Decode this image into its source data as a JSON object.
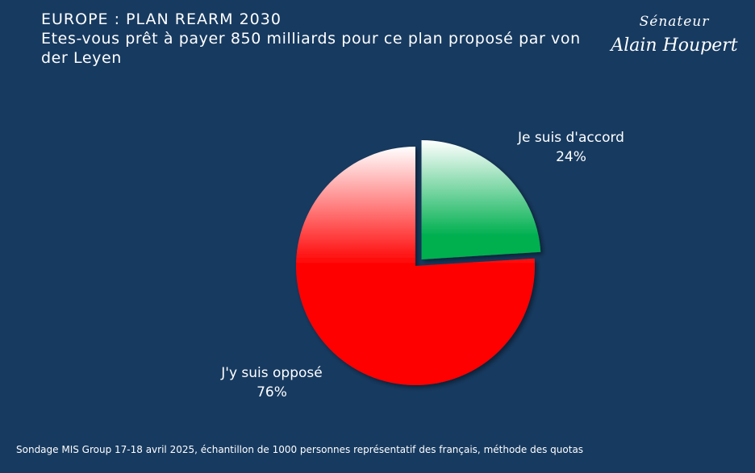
{
  "title": "EUROPE : PLAN REARM 2030",
  "subtitle": "Etes-vous prêt à payer 850 milliards pour ce plan proposé par von der Leyen",
  "signature": {
    "line1": "Sénateur",
    "line2": "Alain Houpert"
  },
  "source": "Sondage MIS Group 17-18 avril 2025, échantillon de 1000 personnes représentatif des français, méthode des quotas",
  "colors": {
    "background": "#173a60",
    "accord_top": "#ffffff",
    "accord_bottom": "#00b050",
    "oppose_top": "#ffffff",
    "oppose_bottom": "#ff0000"
  },
  "chart_data": {
    "type": "pie",
    "title": "EUROPE : PLAN REARM 2030",
    "slices": [
      {
        "label": "Je suis d'accord",
        "value": 24,
        "value_label": "24%",
        "exploded": true
      },
      {
        "label": "J'y suis opposé",
        "value": 76,
        "value_label": "76%",
        "exploded": false
      }
    ]
  }
}
